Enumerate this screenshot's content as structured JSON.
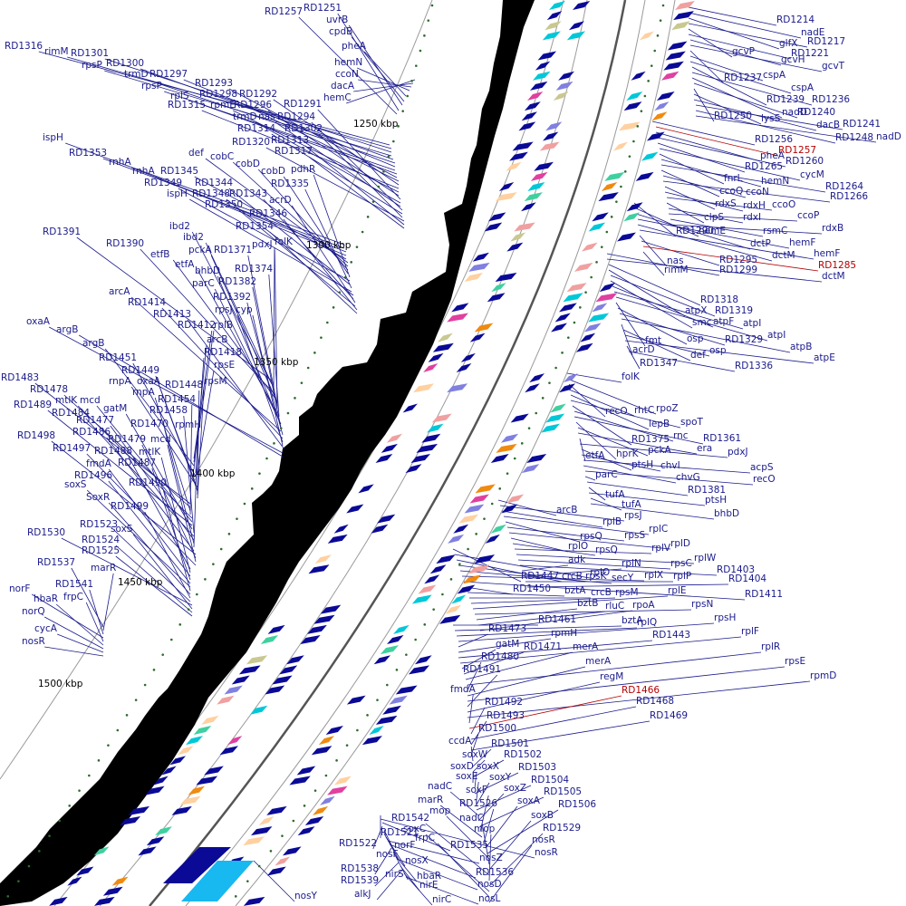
{
  "colors": {
    "label": "#1a1a8c",
    "highlight": "#b30000",
    "gc_skew": "#000000",
    "feature_main": "#0a0a96",
    "feature_alt": [
      "#00c8d8",
      "#f08a10",
      "#e040a0",
      "#c8c890",
      "#40d0a0",
      "#ffd0a0",
      "#f0a0a0",
      "#8080e0"
    ]
  },
  "kbp_marks": [
    {
      "text": "1250 kbp"
    },
    {
      "text": "1300 kbp"
    },
    {
      "text": "1350 kbp"
    },
    {
      "text": "1400 kbp"
    },
    {
      "text": "1450 kbp"
    },
    {
      "text": "1500 kbp"
    }
  ],
  "labels": [
    {
      "t": "RD1257"
    },
    {
      "t": "RD1251"
    },
    {
      "t": "uvrB"
    },
    {
      "t": "cpdB"
    },
    {
      "t": "pheA"
    },
    {
      "t": "hemN"
    },
    {
      "t": "ccoN"
    },
    {
      "t": "dacA"
    },
    {
      "t": "hemC"
    },
    {
      "t": "RD1316"
    },
    {
      "t": "rimM"
    },
    {
      "t": "RD1301"
    },
    {
      "t": "rpsP"
    },
    {
      "t": "RD1300"
    },
    {
      "t": "trmD"
    },
    {
      "t": "RD1297"
    },
    {
      "t": "rpsP"
    },
    {
      "t": "rplS"
    },
    {
      "t": "RD1293"
    },
    {
      "t": "RD1298"
    },
    {
      "t": "RD1292"
    },
    {
      "t": "RD1315"
    },
    {
      "t": "rpmE"
    },
    {
      "t": "RD1296"
    },
    {
      "t": "RD1291"
    },
    {
      "t": "trmD"
    },
    {
      "t": "nas"
    },
    {
      "t": "RD1294"
    },
    {
      "t": "RD1314"
    },
    {
      "t": "RD1302"
    },
    {
      "t": "RD1320"
    },
    {
      "t": "RD1313"
    },
    {
      "t": "RD1317"
    },
    {
      "t": "ispH"
    },
    {
      "t": "RD1353"
    },
    {
      "t": "rnhA"
    },
    {
      "t": "rnhA"
    },
    {
      "t": "RD1345"
    },
    {
      "t": "def"
    },
    {
      "t": "cobC"
    },
    {
      "t": "cobD"
    },
    {
      "t": "cobD"
    },
    {
      "t": "pdhR"
    },
    {
      "t": "RD1349"
    },
    {
      "t": "RD1344"
    },
    {
      "t": "RD1335"
    },
    {
      "t": "ispH"
    },
    {
      "t": "RD1348"
    },
    {
      "t": "RD1343"
    },
    {
      "t": "acrD"
    },
    {
      "t": "RD1350"
    },
    {
      "t": "RD1346"
    },
    {
      "t": "RD1354"
    },
    {
      "t": "RD1391"
    },
    {
      "t": "ibd2"
    },
    {
      "t": "ibd2"
    },
    {
      "t": "folK"
    },
    {
      "t": "RD1390"
    },
    {
      "t": "etfB"
    },
    {
      "t": "pckA"
    },
    {
      "t": "RD1371"
    },
    {
      "t": "pdxJ"
    },
    {
      "t": "etfA"
    },
    {
      "t": "RD1374"
    },
    {
      "t": "bhbD"
    },
    {
      "t": "parC"
    },
    {
      "t": "RD1382"
    },
    {
      "t": "arcA"
    },
    {
      "t": "RD1392"
    },
    {
      "t": "RD1414"
    },
    {
      "t": "rpsJ"
    },
    {
      "t": "cyp"
    },
    {
      "t": "RD1413"
    },
    {
      "t": "oxaA"
    },
    {
      "t": "argB"
    },
    {
      "t": "RD1412"
    },
    {
      "t": "rplB"
    },
    {
      "t": "argB"
    },
    {
      "t": "arcB"
    },
    {
      "t": "RD1418"
    },
    {
      "t": "RD1451"
    },
    {
      "t": "rpsE"
    },
    {
      "t": "RD1449"
    },
    {
      "t": "rnpA"
    },
    {
      "t": "oxaA"
    },
    {
      "t": "RD1448"
    },
    {
      "t": "rpsM"
    },
    {
      "t": "RD1483"
    },
    {
      "t": "RD1478"
    },
    {
      "t": "rnpA"
    },
    {
      "t": "RD1454"
    },
    {
      "t": "mtlK"
    },
    {
      "t": "mcd"
    },
    {
      "t": "RD1489"
    },
    {
      "t": "gatM"
    },
    {
      "t": "RD1458"
    },
    {
      "t": "RD1484"
    },
    {
      "t": "RD1477"
    },
    {
      "t": "RD1470"
    },
    {
      "t": "rpmH"
    },
    {
      "t": "RD1486"
    },
    {
      "t": "RD1498"
    },
    {
      "t": "RD1479"
    },
    {
      "t": "mcd"
    },
    {
      "t": "RD1497"
    },
    {
      "t": "RD1488"
    },
    {
      "t": "mtlK"
    },
    {
      "t": "fmdA"
    },
    {
      "t": "RD1487"
    },
    {
      "t": "RD1496"
    },
    {
      "t": "soxS"
    },
    {
      "t": "RD1490"
    },
    {
      "t": "SoxR"
    },
    {
      "t": "RD1499"
    },
    {
      "t": "RD1523"
    },
    {
      "t": "RD1530"
    },
    {
      "t": "soxS"
    },
    {
      "t": "RD1524"
    },
    {
      "t": "RD1525"
    },
    {
      "t": "RD1537"
    },
    {
      "t": "marR"
    },
    {
      "t": "RD1541"
    },
    {
      "t": "norF"
    },
    {
      "t": "frpC"
    },
    {
      "t": "hbaR"
    },
    {
      "t": "norQ"
    },
    {
      "t": "cycA"
    },
    {
      "t": "nosR"
    },
    {
      "t": "RD1214"
    },
    {
      "t": "nadE"
    },
    {
      "t": "glfX"
    },
    {
      "t": "RD1217"
    },
    {
      "t": "gcvP"
    },
    {
      "t": "RD1221"
    },
    {
      "t": "gcvH"
    },
    {
      "t": "gcvT"
    },
    {
      "t": "RD1237"
    },
    {
      "t": "cspA"
    },
    {
      "t": "cspA"
    },
    {
      "t": "RD1239"
    },
    {
      "t": "RD1236"
    },
    {
      "t": "nadD"
    },
    {
      "t": "RD1240"
    },
    {
      "t": "RD1250"
    },
    {
      "t": "lysS"
    },
    {
      "t": "dacB"
    },
    {
      "t": "RD1241"
    },
    {
      "t": "RD1248"
    },
    {
      "t": "nadD"
    },
    {
      "t": "RD1256"
    },
    {
      "t": "RD1257",
      "red": true
    },
    {
      "t": "pheA"
    },
    {
      "t": "RD1260"
    },
    {
      "t": "RD1265"
    },
    {
      "t": "cycM"
    },
    {
      "t": "fnrL"
    },
    {
      "t": "hemN"
    },
    {
      "t": "RD1264"
    },
    {
      "t": "ccoQ"
    },
    {
      "t": "ccoN"
    },
    {
      "t": "RD1266"
    },
    {
      "t": "rdxS"
    },
    {
      "t": "rdxH"
    },
    {
      "t": "ccoO"
    },
    {
      "t": "clpS"
    },
    {
      "t": "rdxI"
    },
    {
      "t": "ccoP"
    },
    {
      "t": "rsmC"
    },
    {
      "t": "rdxB"
    },
    {
      "t": "RD1290"
    },
    {
      "t": "hemE"
    },
    {
      "t": "dctP"
    },
    {
      "t": "hemF"
    },
    {
      "t": "dctM"
    },
    {
      "t": "hemF"
    },
    {
      "t": "nas"
    },
    {
      "t": "RD1295"
    },
    {
      "t": "RD1285",
      "red": true
    },
    {
      "t": "rimM"
    },
    {
      "t": "RD1299"
    },
    {
      "t": "dctM"
    },
    {
      "t": "RD1318"
    },
    {
      "t": "atpX"
    },
    {
      "t": "RD1319"
    },
    {
      "t": "smc"
    },
    {
      "t": "atpF"
    },
    {
      "t": "atpI"
    },
    {
      "t": "atpI"
    },
    {
      "t": "fmt"
    },
    {
      "t": "osp"
    },
    {
      "t": "RD1329"
    },
    {
      "t": "atpB"
    },
    {
      "t": "acrD"
    },
    {
      "t": "def"
    },
    {
      "t": "osp"
    },
    {
      "t": "atpE"
    },
    {
      "t": "RD1347"
    },
    {
      "t": "RD1336"
    },
    {
      "t": "folK"
    },
    {
      "t": "rpoZ"
    },
    {
      "t": "recO"
    },
    {
      "t": "rhtC"
    },
    {
      "t": "lepB"
    },
    {
      "t": "spoT"
    },
    {
      "t": "RD1375"
    },
    {
      "t": "rnc"
    },
    {
      "t": "RD1361"
    },
    {
      "t": "hprK"
    },
    {
      "t": "pckA"
    },
    {
      "t": "era"
    },
    {
      "t": "etfA"
    },
    {
      "t": "pdxJ"
    },
    {
      "t": "ptsH"
    },
    {
      "t": "chvI"
    },
    {
      "t": "acpS"
    },
    {
      "t": "chvG"
    },
    {
      "t": "recO"
    },
    {
      "t": "parC"
    },
    {
      "t": "RD1381"
    },
    {
      "t": "tufA"
    },
    {
      "t": "ptsH"
    },
    {
      "t": "tufA"
    },
    {
      "t": "bhbD"
    },
    {
      "t": "arcB"
    },
    {
      "t": "rpsJ"
    },
    {
      "t": "rplB"
    },
    {
      "t": "rplC"
    },
    {
      "t": "rpsQ"
    },
    {
      "t": "rpsS"
    },
    {
      "t": "rplD"
    },
    {
      "t": "rplO"
    },
    {
      "t": "rpsQ"
    },
    {
      "t": "rplV"
    },
    {
      "t": "rplW"
    },
    {
      "t": "rpsC"
    },
    {
      "t": "RD1403"
    },
    {
      "t": "adk"
    },
    {
      "t": "rplN"
    },
    {
      "t": "rplP"
    },
    {
      "t": "RD1404"
    },
    {
      "t": "RD1447"
    },
    {
      "t": "rplO"
    },
    {
      "t": "crcB"
    },
    {
      "t": "rpsK"
    },
    {
      "t": "secY"
    },
    {
      "t": "rplX"
    },
    {
      "t": "RD1411"
    },
    {
      "t": "RD1450"
    },
    {
      "t": "bztA"
    },
    {
      "t": "crcB"
    },
    {
      "t": "rpsM"
    },
    {
      "t": "rplE"
    },
    {
      "t": "rpsN"
    },
    {
      "t": "bztB"
    },
    {
      "t": "rluC"
    },
    {
      "t": "rpoA"
    },
    {
      "t": "RD1461"
    },
    {
      "t": "bztA"
    },
    {
      "t": "rplQ"
    },
    {
      "t": "rpsH"
    },
    {
      "t": "RD1473"
    },
    {
      "t": "rpmH"
    },
    {
      "t": "RD1443"
    },
    {
      "t": "rplF"
    },
    {
      "t": "gatM"
    },
    {
      "t": "RD1471"
    },
    {
      "t": "merA"
    },
    {
      "t": "rplR"
    },
    {
      "t": "RD1480"
    },
    {
      "t": "merA"
    },
    {
      "t": "rpsE"
    },
    {
      "t": "RD1491"
    },
    {
      "t": "regM"
    },
    {
      "t": "rpmD"
    },
    {
      "t": "fmdA"
    },
    {
      "t": "RD1466",
      "red": true
    },
    {
      "t": "RD1492"
    },
    {
      "t": "RD1468"
    },
    {
      "t": "RD1493"
    },
    {
      "t": "RD1469"
    },
    {
      "t": "RD1500"
    },
    {
      "t": "ccdA"
    },
    {
      "t": "RD1501"
    },
    {
      "t": "soxW"
    },
    {
      "t": "RD1502"
    },
    {
      "t": "soxD"
    },
    {
      "t": "soxX"
    },
    {
      "t": "RD1503"
    },
    {
      "t": "soxE"
    },
    {
      "t": "soxY"
    },
    {
      "t": "RD1504"
    },
    {
      "t": "nadC"
    },
    {
      "t": "soxZ"
    },
    {
      "t": "RD1505"
    },
    {
      "t": "soxF"
    },
    {
      "t": "marR"
    },
    {
      "t": "RD1526"
    },
    {
      "t": "soxA"
    },
    {
      "t": "RD1506"
    },
    {
      "t": "mop"
    },
    {
      "t": "nadC"
    },
    {
      "t": "soxB"
    },
    {
      "t": "RD1542"
    },
    {
      "t": "mop"
    },
    {
      "t": "RD1529"
    },
    {
      "t": "soxC"
    },
    {
      "t": "frpC"
    },
    {
      "t": "nosR"
    },
    {
      "t": "RD1521"
    },
    {
      "t": "nosR"
    },
    {
      "t": "RD1535"
    },
    {
      "t": "RD1522"
    },
    {
      "t": "norF"
    },
    {
      "t": "nosF"
    },
    {
      "t": "nosX"
    },
    {
      "t": "nosZ"
    },
    {
      "t": "RD1536"
    },
    {
      "t": "RD1538"
    },
    {
      "t": "nirS"
    },
    {
      "t": "hbaR"
    },
    {
      "t": "nosD"
    },
    {
      "t": "RD1539"
    },
    {
      "t": "nirE"
    },
    {
      "t": "nosY"
    },
    {
      "t": "alkJ"
    },
    {
      "t": "nirC"
    },
    {
      "t": "nosL"
    },
    {
      "t": "RD1540"
    }
  ]
}
